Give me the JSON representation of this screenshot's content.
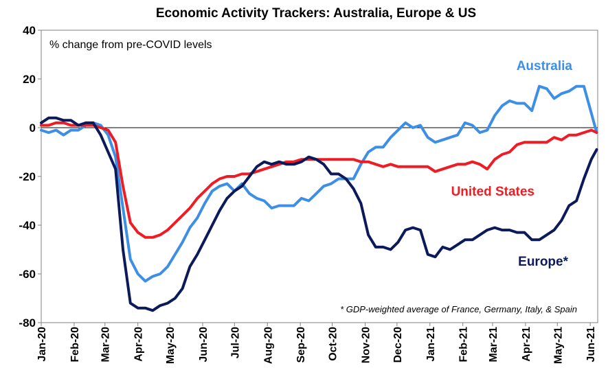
{
  "chart_data": {
    "type": "line",
    "title": "Economic Activity Trackers: Australia, Europe & US",
    "subtitle": "% change from pre-COVID levels",
    "footnote": "* GDP-weighted average of France, Germany, Italy, & Spain",
    "ylim": [
      -80,
      40
    ],
    "yticks": [
      40,
      20,
      0,
      -20,
      -40,
      -60,
      -80
    ],
    "xlim": [
      "2020-01-01",
      "2021-06-08"
    ],
    "xtick_labels": [
      "Jan-20",
      "Feb-20",
      "Mar-20",
      "Apr-20",
      "May-20",
      "Jun-20",
      "Jul-20",
      "Aug-20",
      "Sep-20",
      "Oct-20",
      "Nov-20",
      "Dec-20",
      "Jan-21",
      "Feb-21",
      "Mar-21",
      "Apr-21",
      "May-21",
      "Jun-21"
    ],
    "xtick_dates": [
      "2020-01-01",
      "2020-02-01",
      "2020-03-01",
      "2020-04-01",
      "2020-05-01",
      "2020-06-01",
      "2020-07-01",
      "2020-08-01",
      "2020-09-01",
      "2020-10-01",
      "2020-11-01",
      "2020-12-01",
      "2021-01-01",
      "2021-02-01",
      "2021-03-01",
      "2021-04-01",
      "2021-05-01",
      "2021-06-01"
    ],
    "grid": false,
    "series": [
      {
        "name": "Australia",
        "color": "#3d8fe6",
        "points": [
          [
            "2020-01-01",
            -1
          ],
          [
            "2020-01-08",
            -2
          ],
          [
            "2020-01-15",
            -1
          ],
          [
            "2020-01-22",
            -3
          ],
          [
            "2020-01-29",
            -1
          ],
          [
            "2020-02-05",
            -1
          ],
          [
            "2020-02-12",
            1
          ],
          [
            "2020-02-19",
            2
          ],
          [
            "2020-02-26",
            1
          ],
          [
            "2020-03-04",
            -3
          ],
          [
            "2020-03-11",
            -12
          ],
          [
            "2020-03-18",
            -33
          ],
          [
            "2020-03-25",
            -54
          ],
          [
            "2020-04-01",
            -60
          ],
          [
            "2020-04-08",
            -63
          ],
          [
            "2020-04-15",
            -61
          ],
          [
            "2020-04-22",
            -60
          ],
          [
            "2020-04-29",
            -57
          ],
          [
            "2020-05-06",
            -52
          ],
          [
            "2020-05-13",
            -47
          ],
          [
            "2020-05-20",
            -41
          ],
          [
            "2020-05-27",
            -37
          ],
          [
            "2020-06-03",
            -31
          ],
          [
            "2020-06-10",
            -26
          ],
          [
            "2020-06-17",
            -24
          ],
          [
            "2020-06-24",
            -23
          ],
          [
            "2020-07-01",
            -26
          ],
          [
            "2020-07-08",
            -23
          ],
          [
            "2020-07-15",
            -27
          ],
          [
            "2020-07-22",
            -29
          ],
          [
            "2020-07-29",
            -30
          ],
          [
            "2020-08-05",
            -33
          ],
          [
            "2020-08-12",
            -32
          ],
          [
            "2020-08-19",
            -32
          ],
          [
            "2020-08-26",
            -32
          ],
          [
            "2020-09-02",
            -29
          ],
          [
            "2020-09-09",
            -30
          ],
          [
            "2020-09-16",
            -27
          ],
          [
            "2020-09-23",
            -24
          ],
          [
            "2020-09-30",
            -23
          ],
          [
            "2020-10-07",
            -21
          ],
          [
            "2020-10-14",
            -21
          ],
          [
            "2020-10-21",
            -21
          ],
          [
            "2020-10-28",
            -15
          ],
          [
            "2020-11-04",
            -10
          ],
          [
            "2020-11-11",
            -8
          ],
          [
            "2020-11-18",
            -8
          ],
          [
            "2020-11-25",
            -4
          ],
          [
            "2020-12-02",
            -1
          ],
          [
            "2020-12-09",
            2
          ],
          [
            "2020-12-16",
            0
          ],
          [
            "2020-12-23",
            1
          ],
          [
            "2020-12-30",
            -4
          ],
          [
            "2021-01-06",
            -6
          ],
          [
            "2021-01-13",
            -5
          ],
          [
            "2021-01-20",
            -4
          ],
          [
            "2021-01-27",
            -3
          ],
          [
            "2021-02-03",
            2
          ],
          [
            "2021-02-10",
            1
          ],
          [
            "2021-02-17",
            -2
          ],
          [
            "2021-02-24",
            -1
          ],
          [
            "2021-03-03",
            5
          ],
          [
            "2021-03-10",
            9
          ],
          [
            "2021-03-17",
            11
          ],
          [
            "2021-03-24",
            10
          ],
          [
            "2021-03-31",
            10
          ],
          [
            "2021-04-07",
            7
          ],
          [
            "2021-04-14",
            17
          ],
          [
            "2021-04-21",
            16
          ],
          [
            "2021-04-28",
            12
          ],
          [
            "2021-05-05",
            14
          ],
          [
            "2021-05-12",
            15
          ],
          [
            "2021-05-19",
            17
          ],
          [
            "2021-05-26",
            17
          ],
          [
            "2021-06-02",
            6
          ],
          [
            "2021-06-07",
            -2
          ]
        ]
      },
      {
        "name": "United States",
        "color": "#ee1c24",
        "points": [
          [
            "2020-01-01",
            1
          ],
          [
            "2020-01-08",
            1
          ],
          [
            "2020-01-15",
            2
          ],
          [
            "2020-01-22",
            2
          ],
          [
            "2020-01-29",
            1
          ],
          [
            "2020-02-05",
            1
          ],
          [
            "2020-02-12",
            1
          ],
          [
            "2020-02-19",
            1
          ],
          [
            "2020-02-26",
            0
          ],
          [
            "2020-03-04",
            -1
          ],
          [
            "2020-03-11",
            -6
          ],
          [
            "2020-03-18",
            -24
          ],
          [
            "2020-03-25",
            -39
          ],
          [
            "2020-04-01",
            -43
          ],
          [
            "2020-04-08",
            -45
          ],
          [
            "2020-04-15",
            -45
          ],
          [
            "2020-04-22",
            -44
          ],
          [
            "2020-04-29",
            -42
          ],
          [
            "2020-05-06",
            -39
          ],
          [
            "2020-05-13",
            -36
          ],
          [
            "2020-05-20",
            -33
          ],
          [
            "2020-05-27",
            -29
          ],
          [
            "2020-06-03",
            -26
          ],
          [
            "2020-06-10",
            -23
          ],
          [
            "2020-06-17",
            -21
          ],
          [
            "2020-06-24",
            -20
          ],
          [
            "2020-07-01",
            -20
          ],
          [
            "2020-07-08",
            -19
          ],
          [
            "2020-07-15",
            -19
          ],
          [
            "2020-07-22",
            -18
          ],
          [
            "2020-07-29",
            -17
          ],
          [
            "2020-08-05",
            -16
          ],
          [
            "2020-08-12",
            -15
          ],
          [
            "2020-08-19",
            -14
          ],
          [
            "2020-08-26",
            -14
          ],
          [
            "2020-09-02",
            -13
          ],
          [
            "2020-09-09",
            -13
          ],
          [
            "2020-09-16",
            -13
          ],
          [
            "2020-09-23",
            -13
          ],
          [
            "2020-09-30",
            -13
          ],
          [
            "2020-10-07",
            -13
          ],
          [
            "2020-10-14",
            -13
          ],
          [
            "2020-10-21",
            -13
          ],
          [
            "2020-10-28",
            -14
          ],
          [
            "2020-11-04",
            -14
          ],
          [
            "2020-11-11",
            -15
          ],
          [
            "2020-11-18",
            -16
          ],
          [
            "2020-11-25",
            -15
          ],
          [
            "2020-12-02",
            -16
          ],
          [
            "2020-12-09",
            -16
          ],
          [
            "2020-12-16",
            -16
          ],
          [
            "2020-12-23",
            -16
          ],
          [
            "2020-12-30",
            -16
          ],
          [
            "2021-01-06",
            -18
          ],
          [
            "2021-01-13",
            -17
          ],
          [
            "2021-01-20",
            -16
          ],
          [
            "2021-01-27",
            -15
          ],
          [
            "2021-02-03",
            -15
          ],
          [
            "2021-02-10",
            -14
          ],
          [
            "2021-02-17",
            -15
          ],
          [
            "2021-02-24",
            -17
          ],
          [
            "2021-03-03",
            -13
          ],
          [
            "2021-03-10",
            -11
          ],
          [
            "2021-03-17",
            -10
          ],
          [
            "2021-03-24",
            -7
          ],
          [
            "2021-03-31",
            -6
          ],
          [
            "2021-04-07",
            -6
          ],
          [
            "2021-04-14",
            -6
          ],
          [
            "2021-04-21",
            -6
          ],
          [
            "2021-04-28",
            -4
          ],
          [
            "2021-05-05",
            -5
          ],
          [
            "2021-05-12",
            -3
          ],
          [
            "2021-05-19",
            -3
          ],
          [
            "2021-05-26",
            -2
          ],
          [
            "2021-06-02",
            -1
          ],
          [
            "2021-06-07",
            -2
          ]
        ]
      },
      {
        "name": "Europe*",
        "color": "#0c1a5a",
        "points": [
          [
            "2020-01-01",
            2
          ],
          [
            "2020-01-08",
            4
          ],
          [
            "2020-01-15",
            4
          ],
          [
            "2020-01-22",
            3
          ],
          [
            "2020-01-29",
            3
          ],
          [
            "2020-02-05",
            1
          ],
          [
            "2020-02-12",
            2
          ],
          [
            "2020-02-19",
            2
          ],
          [
            "2020-02-26",
            -3
          ],
          [
            "2020-03-04",
            -10
          ],
          [
            "2020-03-11",
            -17
          ],
          [
            "2020-03-18",
            -50
          ],
          [
            "2020-03-25",
            -72
          ],
          [
            "2020-04-01",
            -74
          ],
          [
            "2020-04-08",
            -74
          ],
          [
            "2020-04-15",
            -75
          ],
          [
            "2020-04-22",
            -73
          ],
          [
            "2020-04-29",
            -72
          ],
          [
            "2020-05-06",
            -70
          ],
          [
            "2020-05-13",
            -66
          ],
          [
            "2020-05-20",
            -57
          ],
          [
            "2020-05-27",
            -52
          ],
          [
            "2020-06-03",
            -46
          ],
          [
            "2020-06-10",
            -40
          ],
          [
            "2020-06-17",
            -34
          ],
          [
            "2020-06-24",
            -29
          ],
          [
            "2020-07-01",
            -26
          ],
          [
            "2020-07-08",
            -24
          ],
          [
            "2020-07-15",
            -20
          ],
          [
            "2020-07-22",
            -16
          ],
          [
            "2020-07-29",
            -14
          ],
          [
            "2020-08-05",
            -15
          ],
          [
            "2020-08-12",
            -14
          ],
          [
            "2020-08-19",
            -15
          ],
          [
            "2020-08-26",
            -15
          ],
          [
            "2020-09-02",
            -14
          ],
          [
            "2020-09-09",
            -12
          ],
          [
            "2020-09-16",
            -13
          ],
          [
            "2020-09-23",
            -15
          ],
          [
            "2020-09-30",
            -19
          ],
          [
            "2020-10-07",
            -19
          ],
          [
            "2020-10-14",
            -21
          ],
          [
            "2020-10-21",
            -25
          ],
          [
            "2020-10-28",
            -31
          ],
          [
            "2020-11-04",
            -44
          ],
          [
            "2020-11-11",
            -49
          ],
          [
            "2020-11-18",
            -49
          ],
          [
            "2020-11-25",
            -50
          ],
          [
            "2020-12-02",
            -47
          ],
          [
            "2020-12-09",
            -42
          ],
          [
            "2020-12-16",
            -41
          ],
          [
            "2020-12-23",
            -42
          ],
          [
            "2020-12-30",
            -52
          ],
          [
            "2021-01-06",
            -53
          ],
          [
            "2021-01-13",
            -49
          ],
          [
            "2021-01-20",
            -50
          ],
          [
            "2021-01-27",
            -48
          ],
          [
            "2021-02-03",
            -46
          ],
          [
            "2021-02-10",
            -46
          ],
          [
            "2021-02-17",
            -44
          ],
          [
            "2021-02-24",
            -42
          ],
          [
            "2021-03-03",
            -41
          ],
          [
            "2021-03-10",
            -42
          ],
          [
            "2021-03-17",
            -42
          ],
          [
            "2021-03-24",
            -43
          ],
          [
            "2021-03-31",
            -43
          ],
          [
            "2021-04-07",
            -46
          ],
          [
            "2021-04-14",
            -46
          ],
          [
            "2021-04-21",
            -44
          ],
          [
            "2021-04-28",
            -42
          ],
          [
            "2021-05-05",
            -38
          ],
          [
            "2021-05-12",
            -32
          ],
          [
            "2021-05-19",
            -30
          ],
          [
            "2021-05-26",
            -21
          ],
          [
            "2021-06-02",
            -13
          ],
          [
            "2021-06-07",
            -9
          ]
        ]
      }
    ]
  }
}
